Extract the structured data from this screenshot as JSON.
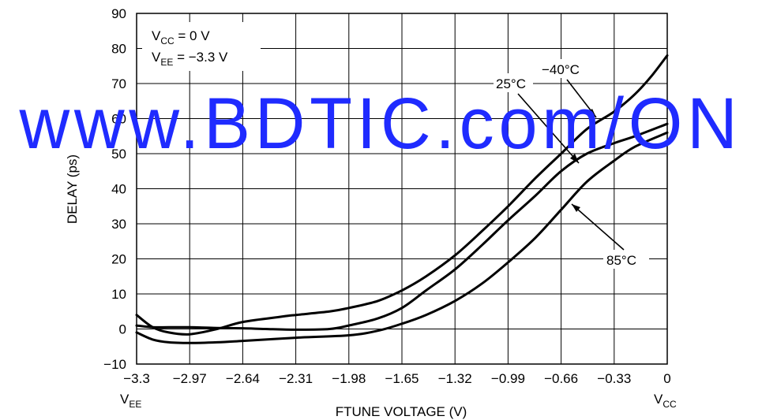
{
  "chart_data": {
    "type": "line",
    "xlabel": "FTUNE VOLTAGE (V)",
    "ylabel": "DELAY (ps)",
    "xlim": [
      -3.3,
      0
    ],
    "ylim": [
      -10,
      90
    ],
    "x_ticks": [
      -3.3,
      -2.97,
      -2.64,
      -2.31,
      -1.98,
      -1.65,
      -1.32,
      -0.99,
      -0.66,
      -0.33,
      0
    ],
    "x_tick_labels": [
      "−3.3",
      "−2.97",
      "−2.64",
      "−2.31",
      "−1.98",
      "−1.65",
      "−1.32",
      "−0.99",
      "−0.66",
      "−0.33",
      "0"
    ],
    "y_ticks": [
      -10,
      0,
      10,
      20,
      30,
      40,
      50,
      60,
      70,
      80,
      90
    ],
    "y_tick_labels": [
      "−10",
      "0",
      "10",
      "20",
      "30",
      "40",
      "50",
      "60",
      "70",
      "80",
      "90"
    ],
    "x_end_labels": {
      "left": {
        "main": "V",
        "sub": "EE"
      },
      "right": {
        "main": "V",
        "sub": "CC"
      }
    },
    "grid": true,
    "conditions": [
      {
        "main": "V",
        "sub": "CC",
        "rest": " = 0 V"
      },
      {
        "main": "V",
        "sub": "EE",
        "rest": " = −3.3 V"
      }
    ],
    "series": [
      {
        "name": "−40°C",
        "x": [
          -3.3,
          -3.2,
          -3.1,
          -2.97,
          -2.8,
          -2.64,
          -2.4,
          -2.31,
          -2.1,
          -1.98,
          -1.8,
          -1.65,
          -1.5,
          -1.32,
          -1.15,
          -0.99,
          -0.82,
          -0.66,
          -0.5,
          -0.33,
          -0.2,
          -0.1,
          0
        ],
        "y": [
          4,
          0.5,
          -1,
          -1.5,
          0,
          2,
          3.5,
          4,
          5,
          6,
          8,
          11,
          15,
          21,
          28,
          35,
          43,
          50,
          57,
          62,
          67,
          72,
          78
        ]
      },
      {
        "name": "25°C",
        "x": [
          -3.3,
          -3.2,
          -3.1,
          -2.97,
          -2.8,
          -2.64,
          -2.5,
          -2.31,
          -2.1,
          -1.98,
          -1.8,
          -1.65,
          -1.5,
          -1.32,
          -1.15,
          -0.99,
          -0.82,
          -0.66,
          -0.5,
          -0.33,
          -0.2,
          0
        ],
        "y": [
          1,
          0.5,
          0.5,
          0.5,
          0.3,
          0.2,
          0,
          -0.2,
          0,
          1,
          3,
          6,
          11,
          17,
          24,
          31,
          38,
          45,
          50,
          53,
          55,
          58.5
        ]
      },
      {
        "name": "85°C",
        "x": [
          -3.3,
          -3.2,
          -3.1,
          -2.97,
          -2.8,
          -2.64,
          -2.31,
          -1.98,
          -1.8,
          -1.65,
          -1.5,
          -1.32,
          -1.15,
          -0.99,
          -0.82,
          -0.66,
          -0.5,
          -0.33,
          -0.2,
          0
        ],
        "y": [
          -1,
          -3,
          -3.8,
          -4,
          -3.8,
          -3.4,
          -2.5,
          -1.8,
          -0.5,
          1.5,
          4,
          8,
          13,
          19,
          26,
          34,
          42,
          48,
          52,
          56
        ]
      }
    ],
    "labels": [
      {
        "text": "−40°C",
        "series": 0
      },
      {
        "text": "25°C",
        "series": 1
      },
      {
        "text": "85°C",
        "series": 2
      }
    ]
  },
  "watermark": "www.BDTIC.com/ON"
}
